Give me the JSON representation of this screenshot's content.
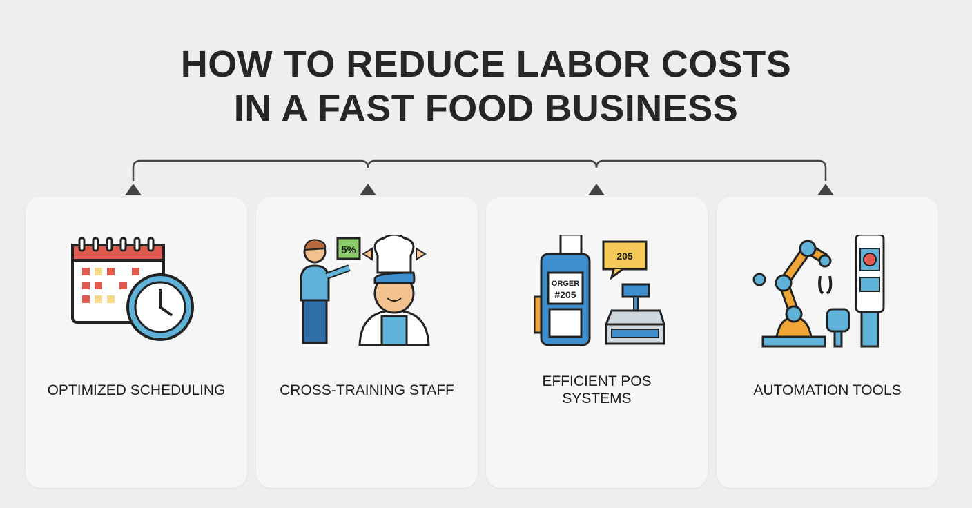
{
  "title": {
    "line1": "HOW TO REDUCE LABOR COSTS",
    "line2": "IN A FAST FOOD BUSINESS"
  },
  "cards": [
    {
      "label": "OPTIMIZED SCHEDULING",
      "icon": "calendar-clock-icon"
    },
    {
      "label": "CROSS-TRAINING STAFF",
      "icon": "staff-training-icon",
      "sign_text": "5%"
    },
    {
      "label": "EFFICIENT POS\nSYSTEMS",
      "icon": "pos-terminal-icon",
      "screen_text_1": "ORGER",
      "screen_text_2": "#205",
      "bubble_text": "205"
    },
    {
      "label": "AUTOMATION TOOLS",
      "icon": "robot-arm-kiosk-icon"
    }
  ],
  "colors": {
    "background": "#eeeeee",
    "card": "#f6f6f6",
    "title": "#262626",
    "connector": "#444444",
    "blue": "#3f8fcf",
    "orange": "#f0a637",
    "red": "#e05a4f"
  }
}
